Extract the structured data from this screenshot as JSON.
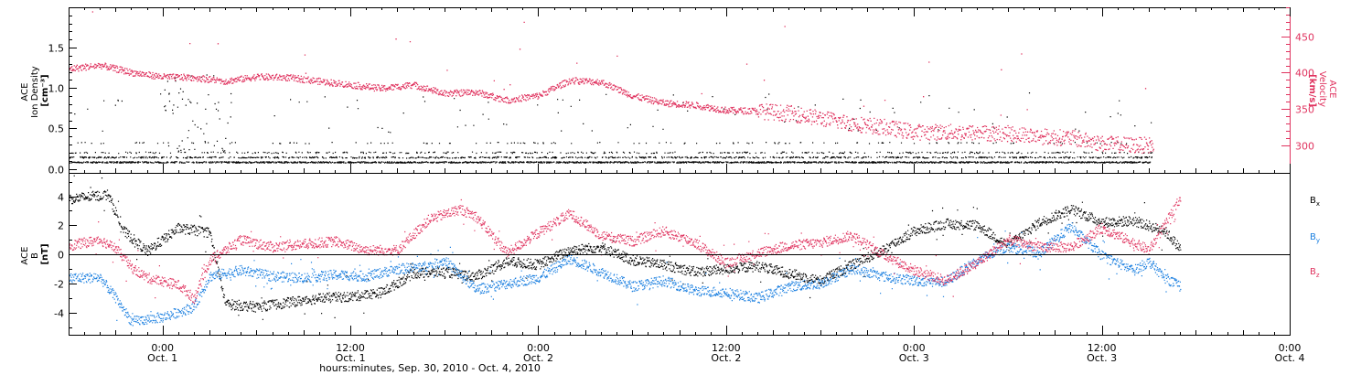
{
  "chart_data": [
    {
      "type": "scatter",
      "panel": "top",
      "ylabel": [
        "ACE",
        "Ion Density",
        "[cm⁻³]"
      ],
      "ylabel_right": [
        "ACE",
        "Velocity",
        "[km/s]"
      ],
      "ylim": [
        -0.05,
        2.0
      ],
      "ylim_right": [
        262,
        490
      ],
      "yticks": [
        "0.0",
        "0.5",
        "1.0",
        "1.5"
      ],
      "yticks_right": [
        "300",
        "350",
        "400",
        "450"
      ],
      "series": [
        {
          "color": "#000000",
          "axis": "left",
          "levels": [
            0.08,
            0.2,
            0.32,
            0.45
          ],
          "points": [
            [
              -6,
              0.14
            ],
            [
              -3,
              0.08
            ],
            [
              0,
              0.2
            ],
            [
              3,
              0.32
            ],
            [
              6,
              0.14
            ],
            [
              12,
              0.08
            ],
            [
              18,
              0.2
            ],
            [
              24,
              0.08
            ],
            [
              30,
              0.14
            ],
            [
              36,
              0.08
            ],
            [
              42,
              0.2
            ],
            [
              48,
              0.14
            ],
            [
              54,
              0.08
            ],
            [
              60,
              0.2
            ],
            [
              63,
              0.14
            ]
          ]
        },
        {
          "color": "#e0335f",
          "axis": "right",
          "points": [
            [
              -6,
              405
            ],
            [
              -4,
              410
            ],
            [
              -2,
              400
            ],
            [
              0,
              394
            ],
            [
              2,
              393
            ],
            [
              4,
              388
            ],
            [
              6,
              394
            ],
            [
              8,
              393
            ],
            [
              10,
              388
            ],
            [
              12,
              383
            ],
            [
              14,
              378
            ],
            [
              16,
              383
            ],
            [
              18,
              371
            ],
            [
              20,
              373
            ],
            [
              22,
              362
            ],
            [
              24,
              368
            ],
            [
              26,
              389
            ],
            [
              28,
              387
            ],
            [
              30,
              368
            ],
            [
              32,
              358
            ],
            [
              34,
              355
            ],
            [
              36,
              348
            ],
            [
              38,
              347
            ],
            [
              40,
              344
            ],
            [
              42,
              337
            ],
            [
              44,
              330
            ],
            [
              46,
              325
            ],
            [
              48,
              318
            ],
            [
              50,
              318
            ],
            [
              52,
              317
            ],
            [
              54,
              316
            ],
            [
              56,
              312
            ],
            [
              58,
              310
            ],
            [
              60,
              302
            ],
            [
              62,
              300
            ],
            [
              63,
              300
            ]
          ]
        }
      ]
    },
    {
      "type": "scatter",
      "panel": "bottom",
      "ylabel": [
        "ACE",
        "B",
        "[nT]"
      ],
      "ylim": [
        -5.5,
        5.6
      ],
      "yticks": [
        "-4",
        "-2",
        "0",
        "2",
        "4"
      ],
      "xlim": [
        -6,
        72
      ],
      "xticks": [
        {
          "hour": 0,
          "time": "0:00",
          "date": "Oct. 1"
        },
        {
          "hour": 12,
          "time": "12:00",
          "date": "Oct. 1"
        },
        {
          "hour": 24,
          "time": "0:00",
          "date": "Oct. 2"
        },
        {
          "hour": 36,
          "time": "12:00",
          "date": "Oct. 2"
        },
        {
          "hour": 48,
          "time": "0:00",
          "date": "Oct. 3"
        },
        {
          "hour": 60,
          "time": "12:00",
          "date": "Oct. 3"
        },
        {
          "hour": 72,
          "time": "0:00",
          "date": "Oct. 4"
        }
      ],
      "xlabel": "hours:minutes, Sep. 30, 2010 - Oct. 4, 2010",
      "series": [
        {
          "name": "B",
          "subscript": "x",
          "color": "#000000",
          "points": [
            [
              -6,
              3.8
            ],
            [
              -3.5,
              4.1
            ],
            [
              -2.5,
              1.6
            ],
            [
              -1,
              0.2
            ],
            [
              1,
              1.8
            ],
            [
              3,
              1.5
            ],
            [
              4,
              -3.4
            ],
            [
              6,
              -3.6
            ],
            [
              8,
              -3.3
            ],
            [
              10,
              -3.0
            ],
            [
              12,
              -2.9
            ],
            [
              14,
              -2.6
            ],
            [
              16,
              -1.3
            ],
            [
              18,
              -1.2
            ],
            [
              20,
              -1.5
            ],
            [
              22,
              -0.5
            ],
            [
              24,
              -0.7
            ],
            [
              26,
              0.3
            ],
            [
              28,
              0.5
            ],
            [
              30,
              -0.4
            ],
            [
              32,
              -0.7
            ],
            [
              34,
              -1.2
            ],
            [
              36,
              -1.0
            ],
            [
              38,
              -0.8
            ],
            [
              40,
              -1.3
            ],
            [
              42,
              -1.8
            ],
            [
              46,
              0.3
            ],
            [
              48,
              1.6
            ],
            [
              50,
              2.1
            ],
            [
              52,
              2.0
            ],
            [
              54,
              0.6
            ],
            [
              56,
              2.2
            ],
            [
              58,
              3.1
            ],
            [
              60,
              2.2
            ],
            [
              62,
              2.3
            ],
            [
              64,
              1.6
            ],
            [
              65,
              0.4
            ]
          ]
        },
        {
          "name": "B",
          "subscript": "y",
          "color": "#1a7fe0",
          "points": [
            [
              -6,
              -1.6
            ],
            [
              -4,
              -1.6
            ],
            [
              -3,
              -3.0
            ],
            [
              -2,
              -4.6
            ],
            [
              0,
              -4.3
            ],
            [
              2,
              -3.6
            ],
            [
              3,
              -1.5
            ],
            [
              5,
              -1.1
            ],
            [
              7,
              -1.5
            ],
            [
              9,
              -1.6
            ],
            [
              11,
              -1.4
            ],
            [
              13,
              -1.5
            ],
            [
              15,
              -1.0
            ],
            [
              17,
              -0.8
            ],
            [
              18,
              -0.4
            ],
            [
              20,
              -2.4
            ],
            [
              22,
              -2.0
            ],
            [
              24,
              -1.6
            ],
            [
              26,
              -0.3
            ],
            [
              28,
              -1.2
            ],
            [
              30,
              -2.2
            ],
            [
              32,
              -1.8
            ],
            [
              34,
              -2.5
            ],
            [
              36,
              -2.6
            ],
            [
              38,
              -3.0
            ],
            [
              40,
              -2.2
            ],
            [
              42,
              -2.0
            ],
            [
              44,
              -1.0
            ],
            [
              46,
              -1.5
            ],
            [
              48,
              -1.8
            ],
            [
              50,
              -1.9
            ],
            [
              52,
              -0.4
            ],
            [
              54,
              0.5
            ],
            [
              56,
              0.1
            ],
            [
              58,
              1.9
            ],
            [
              60,
              -0.1
            ],
            [
              62,
              -1.1
            ],
            [
              63,
              -0.5
            ],
            [
              64,
              -1.6
            ],
            [
              65,
              -2.2
            ]
          ]
        },
        {
          "name": "B",
          "subscript": "z",
          "color": "#e0335f",
          "points": [
            [
              -6,
              0.6
            ],
            [
              -4,
              1.0
            ],
            [
              -3,
              0.4
            ],
            [
              -2,
              -0.9
            ],
            [
              -1,
              -1.6
            ],
            [
              1,
              -2.1
            ],
            [
              2,
              -3.0
            ],
            [
              3,
              -0.4
            ],
            [
              5,
              1.0
            ],
            [
              7,
              0.5
            ],
            [
              9,
              0.7
            ],
            [
              11,
              0.9
            ],
            [
              13,
              0.3
            ],
            [
              15,
              0.3
            ],
            [
              17,
              2.4
            ],
            [
              19,
              3.1
            ],
            [
              20,
              2.6
            ],
            [
              22,
              0.1
            ],
            [
              24,
              1.5
            ],
            [
              26,
              2.8
            ],
            [
              28,
              1.3
            ],
            [
              30,
              0.9
            ],
            [
              32,
              1.6
            ],
            [
              34,
              0.8
            ],
            [
              36,
              -0.6
            ],
            [
              38,
              0.1
            ],
            [
              40,
              0.6
            ],
            [
              42,
              0.8
            ],
            [
              44,
              1.3
            ],
            [
              46,
              0.0
            ],
            [
              48,
              -1.1
            ],
            [
              50,
              -1.8
            ],
            [
              52,
              -0.6
            ],
            [
              54,
              1.0
            ],
            [
              56,
              0.5
            ],
            [
              58,
              0.5
            ],
            [
              60,
              1.8
            ],
            [
              62,
              0.8
            ],
            [
              63,
              0.3
            ],
            [
              64,
              2.0
            ],
            [
              65,
              3.9
            ]
          ]
        }
      ]
    }
  ]
}
